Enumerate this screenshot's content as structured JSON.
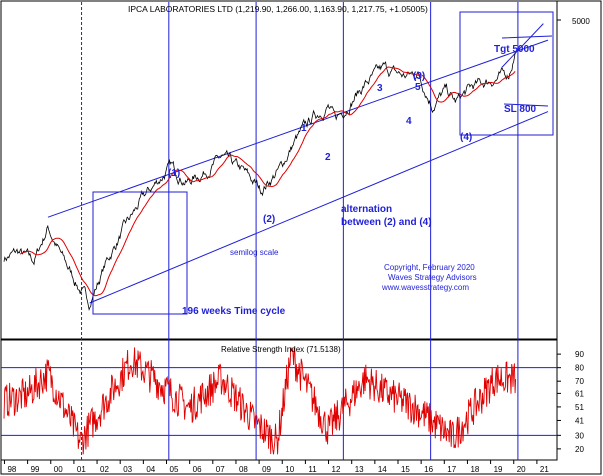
{
  "chart_data": [
    {
      "type": "line",
      "title": "IPCA LABORATORIES LTD (1,219.90, 1,266.00, 1,163.90, 1,217.75, +1.05005)",
      "x": [
        "98",
        "99",
        "00",
        "01",
        "02",
        "03",
        "04",
        "05",
        "06",
        "07",
        "08",
        "09",
        "10",
        "11",
        "12",
        "13",
        "14",
        "15",
        "16",
        "17",
        "18",
        "19",
        "20",
        "21"
      ],
      "y_ticks": [
        "5000"
      ],
      "log_scale": true,
      "price_anchors": [
        {
          "x": 1998.0,
          "y": 0.07
        },
        {
          "x": 1998.6,
          "y": 0.12
        },
        {
          "x": 1999.3,
          "y": 0.04
        },
        {
          "x": 1999.9,
          "y": 0.35
        },
        {
          "x": 2000.5,
          "y": 0.08
        },
        {
          "x": 2001.3,
          "y": -0.22
        },
        {
          "x": 2001.7,
          "y": -0.34
        },
        {
          "x": 2002.4,
          "y": 0.02
        },
        {
          "x": 2003.2,
          "y": 0.34
        },
        {
          "x": 2004.0,
          "y": 0.61
        },
        {
          "x": 2004.7,
          "y": 0.78
        },
        {
          "x": 2005.2,
          "y": 0.9
        },
        {
          "x": 2005.9,
          "y": 0.76
        },
        {
          "x": 2006.6,
          "y": 0.84
        },
        {
          "x": 2007.4,
          "y": 0.98
        },
        {
          "x": 2008.3,
          "y": 0.86
        },
        {
          "x": 2009.1,
          "y": 0.69
        },
        {
          "x": 2009.9,
          "y": 0.87
        },
        {
          "x": 2010.6,
          "y": 1.14
        },
        {
          "x": 2011.4,
          "y": 1.36
        },
        {
          "x": 2012.0,
          "y": 1.45
        },
        {
          "x": 2012.3,
          "y": 1.32
        },
        {
          "x": 2012.9,
          "y": 1.47
        },
        {
          "x": 2013.6,
          "y": 1.65
        },
        {
          "x": 2014.4,
          "y": 1.79
        },
        {
          "x": 2015.3,
          "y": 1.72
        },
        {
          "x": 2015.9,
          "y": 1.75
        },
        {
          "x": 2016.5,
          "y": 1.46
        },
        {
          "x": 2017.1,
          "y": 1.59
        },
        {
          "x": 2017.5,
          "y": 1.48
        },
        {
          "x": 2018.2,
          "y": 1.62
        },
        {
          "x": 2019.1,
          "y": 1.69
        },
        {
          "x": 2019.8,
          "y": 1.74
        },
        {
          "x": 2020.1,
          "y": 1.95
        }
      ],
      "series": [
        {
          "name": "price",
          "color": "#000000"
        },
        {
          "name": "moving average",
          "color": "#e00000"
        }
      ],
      "wave_labels": [
        "(1)",
        "(2)",
        "1",
        "2",
        "3",
        "4",
        "5",
        "(3)",
        "(4)"
      ],
      "annotations": {
        "alternation": "alternation\nbetween (2) and (4)",
        "semilog": "semilog scale",
        "cycle": "196 weeks Time cycle",
        "target": "Tgt 5000",
        "stop": "SL 800",
        "copyright": "Copyright, February 2020",
        "advisors": "Waves Strategy Advisors",
        "website": "www.wavesstrategy.com"
      },
      "cycle_years": [
        2001.35,
        2005.12,
        2008.89,
        2012.66,
        2016.43,
        2020.2
      ],
      "colors": {
        "annotation": "#1f1fd6",
        "price": "#000000",
        "ma": "#e00000"
      }
    },
    {
      "type": "line",
      "title": "Relative Strength Index (71.5138)",
      "y_ticks": [
        "90",
        "80",
        "70",
        "61",
        "51",
        "41",
        "30",
        "20"
      ],
      "ylim": [
        14,
        96
      ],
      "reference_lines": [
        80,
        30
      ],
      "last_value": 71.5138,
      "rsi_anchors": [
        {
          "x": 1998.0,
          "y": 55
        },
        {
          "x": 1999.0,
          "y": 60
        },
        {
          "x": 1999.9,
          "y": 76
        },
        {
          "x": 2001.3,
          "y": 25
        },
        {
          "x": 2003.5,
          "y": 86
        },
        {
          "x": 2006.0,
          "y": 50
        },
        {
          "x": 2007.4,
          "y": 72
        },
        {
          "x": 2008.8,
          "y": 40
        },
        {
          "x": 2009.8,
          "y": 25
        },
        {
          "x": 2010.4,
          "y": 90
        },
        {
          "x": 2012.0,
          "y": 34
        },
        {
          "x": 2013.6,
          "y": 72
        },
        {
          "x": 2014.4,
          "y": 62
        },
        {
          "x": 2015.8,
          "y": 50
        },
        {
          "x": 2016.5,
          "y": 40
        },
        {
          "x": 2017.4,
          "y": 28
        },
        {
          "x": 2019.2,
          "y": 72
        },
        {
          "x": 2020.1,
          "y": 71.5
        }
      ],
      "color": "#e00000"
    }
  ]
}
